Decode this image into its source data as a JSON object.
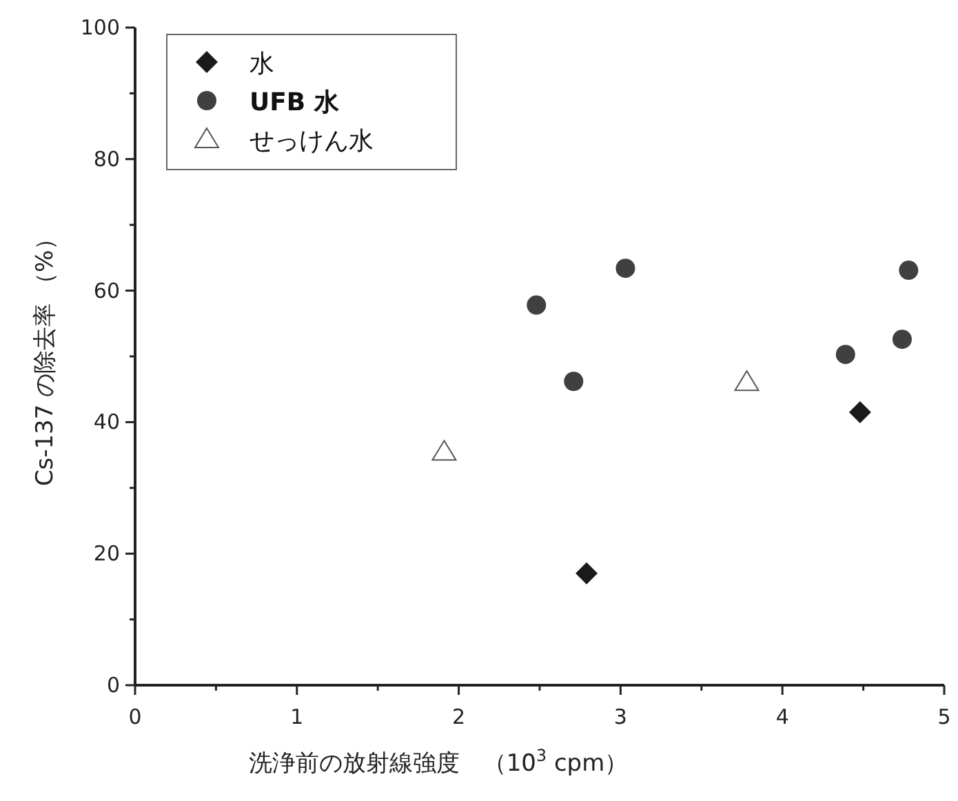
{
  "chart_data": {
    "type": "scatter",
    "xlabel": "洗浄前の放射線強度　（10$^{3}$ cpm）",
    "ylabel": "Cs-137 の除去率 （%）",
    "xlim": [
      0,
      5
    ],
    "ylim": [
      0,
      100
    ],
    "xticks": [
      0,
      {
        "value": 0.5,
        "label": null
      },
      1,
      {
        "value": 1.5,
        "label": null
      },
      2,
      {
        "value": 2.5,
        "label": null
      },
      3,
      {
        "value": 3.5,
        "label": null
      },
      4,
      {
        "value": 4.5,
        "label": null
      },
      5
    ],
    "yticks": [
      0,
      {
        "value": 10,
        "label": null
      },
      20,
      {
        "value": 30,
        "label": null
      },
      40,
      {
        "value": 50,
        "label": null
      },
      60,
      {
        "value": 70,
        "label": null
      },
      80,
      {
        "value": 90,
        "label": null
      },
      100
    ],
    "legend": "top left",
    "grid": false,
    "series": [
      {
        "name": "水",
        "color": "#1a1a1a",
        "marker": "diamond",
        "x": [
          2.79,
          4.48
        ],
        "values": [
          17.0,
          41.5
        ]
      },
      {
        "name": "**UFB 水**",
        "color": "#404040",
        "marker": "circle",
        "x": [
          2.48,
          2.71,
          3.03,
          4.39,
          4.74,
          4.78
        ],
        "values": [
          57.8,
          46.2,
          63.4,
          50.3,
          52.6,
          63.1
        ]
      },
      {
        "name": "せっけん水",
        "color": "#555555",
        "marker": "triangle",
        "x": [
          1.91,
          3.78
        ],
        "values": [
          35.5,
          46.1
        ]
      }
    ]
  }
}
